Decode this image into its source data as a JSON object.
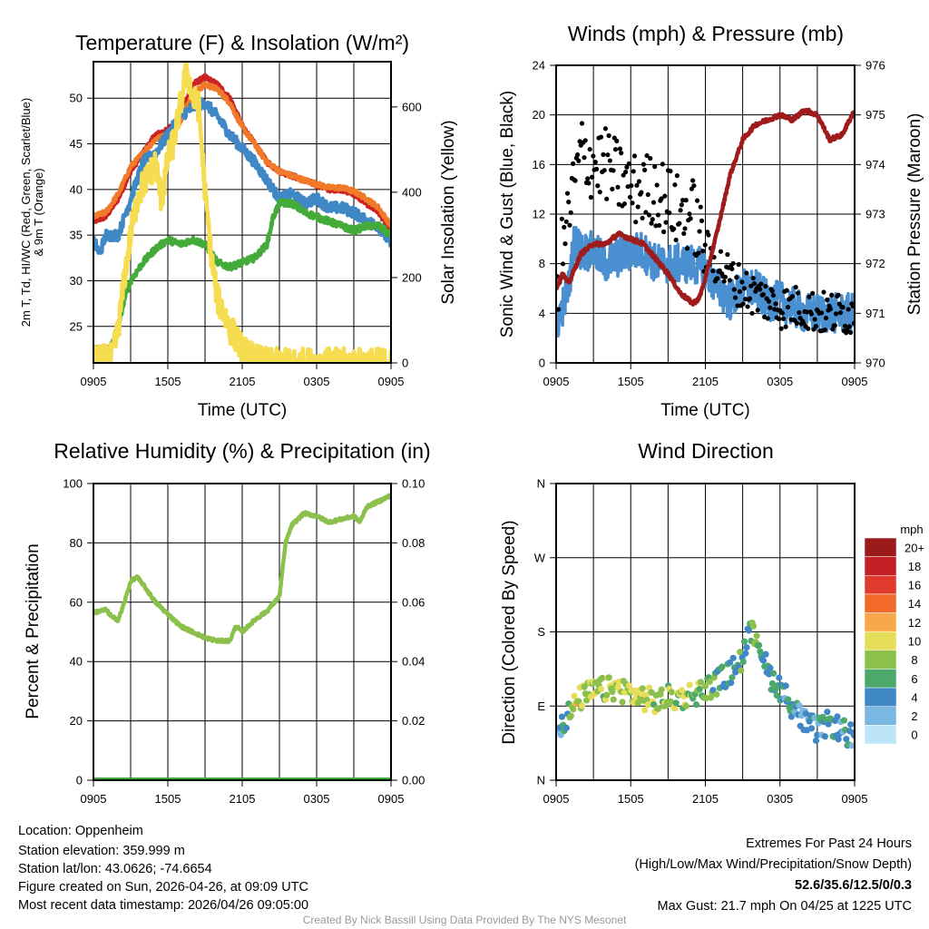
{
  "chart_data": [
    {
      "type": "line",
      "id": "temp",
      "title": "Temperature (F) & Insolation (W/m²)",
      "xlabel": "Time (UTC)",
      "ylabel": [
        "2m T, Td, HI/WC (Red, Green, Scarlet/Blue)",
        "& 9m T (Orange)"
      ],
      "ylabel_right": "Solar Insolation (Yellow)",
      "x_ticks": [
        "0905",
        "1505",
        "2105",
        "0305",
        "0905"
      ],
      "xlim_hours": [
        0,
        24
      ],
      "ylim": [
        21,
        54
      ],
      "y_ticks": [
        25,
        30,
        35,
        40,
        45,
        50
      ],
      "ylim_right": [
        0,
        706
      ],
      "y_ticks_right": [
        0,
        200,
        400,
        600
      ],
      "series": [
        {
          "name": "HI/WC",
          "axis": "left",
          "color": "#cc2222",
          "x": [
            0,
            1,
            2,
            3,
            4,
            5,
            6,
            7,
            8,
            9,
            10,
            11,
            12,
            13,
            14,
            15,
            16,
            17,
            18,
            19,
            20,
            21,
            22,
            23,
            24
          ],
          "values": [
            36.5,
            37,
            39,
            42,
            44,
            46,
            46.5,
            48,
            51.5,
            52.3,
            51.5,
            50,
            47,
            45,
            43,
            42,
            41.5,
            41,
            40.5,
            40,
            40,
            39.5,
            38.5,
            37.5,
            35.5
          ]
        },
        {
          "name": "9m T",
          "axis": "left",
          "color": "#f07a2a",
          "x": [
            0,
            1,
            2,
            3,
            4,
            5,
            6,
            7,
            8,
            9,
            10,
            11,
            12,
            13,
            14,
            15,
            16,
            17,
            18,
            19,
            20,
            21,
            22,
            23,
            24
          ],
          "values": [
            37,
            37.5,
            39.5,
            42.5,
            44,
            45.5,
            46,
            47.5,
            50.5,
            51.5,
            51,
            49.5,
            46.8,
            45,
            43,
            42,
            41.5,
            41,
            40.6,
            40.2,
            40.2,
            39.8,
            39,
            38,
            36
          ]
        },
        {
          "name": "2m T",
          "axis": "left",
          "color": "#3f88c5",
          "x": [
            0,
            0.5,
            1,
            2,
            3,
            4,
            5,
            6,
            7,
            8,
            9,
            10,
            11,
            12,
            13,
            14,
            15,
            16,
            17,
            18,
            19,
            20,
            21,
            22,
            23,
            24
          ],
          "values": [
            34.5,
            33,
            35,
            35,
            39,
            43,
            44,
            46,
            48,
            49,
            49.5,
            48,
            46,
            44.5,
            43,
            41,
            39,
            39.5,
            38.5,
            39,
            38,
            38,
            37.5,
            36.5,
            36,
            34
          ]
        },
        {
          "name": "Td",
          "axis": "left",
          "color": "#44aa3a",
          "x": [
            0,
            1,
            1.5,
            2,
            2.5,
            3,
            4,
            5,
            6,
            7,
            8,
            9,
            10,
            11,
            12,
            13,
            14,
            14.5,
            15,
            16,
            17,
            18,
            19,
            20,
            21,
            22,
            23,
            24
          ],
          "values": [
            22.5,
            22.5,
            23,
            25,
            28,
            30,
            32,
            33.5,
            34.5,
            34,
            34.5,
            34,
            32,
            31.5,
            32,
            32.5,
            34,
            37,
            38.5,
            38.5,
            37.5,
            37,
            36.5,
            36,
            35.5,
            36,
            36,
            35
          ]
        },
        {
          "name": "Solar Insolation",
          "axis": "right",
          "color": "#f5dc50",
          "x": [
            0,
            1.5,
            2,
            2.5,
            3,
            3.5,
            4,
            4.5,
            5,
            5.5,
            6,
            6.5,
            7,
            7.5,
            8,
            8.5,
            9,
            9.5,
            10,
            10.5,
            11,
            11.5,
            12,
            13,
            14,
            24
          ],
          "values": [
            5,
            10,
            80,
            200,
            300,
            380,
            420,
            440,
            470,
            380,
            480,
            520,
            600,
            690,
            620,
            600,
            400,
            250,
            150,
            120,
            80,
            60,
            30,
            10,
            0,
            0
          ]
        }
      ]
    },
    {
      "type": "line",
      "id": "wind",
      "title": "Winds (mph) & Pressure (mb)",
      "xlabel": "Time (UTC)",
      "ylabel": "Sonic Wind & Gust (Blue, Black)",
      "ylabel_right": "Station Pressure (Maroon)",
      "x_ticks": [
        "0905",
        "1505",
        "2105",
        "0305",
        "0905"
      ],
      "xlim_hours": [
        0,
        24
      ],
      "ylim": [
        0,
        24
      ],
      "y_ticks": [
        0,
        4,
        8,
        12,
        16,
        20,
        24
      ],
      "ylim_right": [
        970,
        976
      ],
      "y_ticks_right": [
        970,
        971,
        972,
        973,
        974,
        975,
        976
      ],
      "series": [
        {
          "name": "Sonic Wind",
          "axis": "left",
          "color": "#4a90d0",
          "x": [
            0,
            1,
            1.5,
            2,
            3,
            4,
            5,
            6,
            7,
            8,
            9,
            10,
            11,
            12,
            13,
            14,
            15,
            16,
            17,
            18,
            19,
            20,
            21,
            22,
            23,
            24
          ],
          "values": [
            3,
            6,
            10,
            9,
            9,
            8,
            8.5,
            9,
            9,
            8,
            8,
            8,
            8,
            7.5,
            6,
            5,
            6,
            6,
            5,
            5,
            4.5,
            4,
            4,
            4,
            4,
            4
          ]
        },
        {
          "name": "Gust",
          "axis": "left",
          "color": "#000000",
          "style": "dots",
          "x": [
            0,
            1,
            2,
            3,
            4,
            5,
            6,
            7,
            8,
            9,
            10,
            11,
            12,
            13,
            14,
            15,
            16,
            17,
            18,
            19,
            20,
            21,
            22,
            23,
            24
          ],
          "values": [
            6,
            12,
            17,
            16,
            16,
            15,
            14,
            14,
            14,
            13,
            12,
            12,
            9,
            8,
            7,
            6,
            5.5,
            5,
            4.5,
            4.5,
            4.5,
            4,
            4,
            4,
            4
          ]
        },
        {
          "name": "Station Pressure",
          "axis": "right",
          "color": "#a01c1c",
          "x": [
            0,
            0.5,
            1,
            2,
            3,
            4,
            5,
            6,
            7,
            8,
            9,
            10,
            11,
            11.5,
            12,
            13,
            14,
            15,
            16,
            17,
            18,
            19,
            20,
            21,
            22,
            23,
            24
          ],
          "values": [
            971.5,
            971.8,
            971.6,
            972.2,
            972.4,
            972.4,
            972.6,
            972.5,
            972.4,
            972.1,
            971.8,
            971.4,
            971.2,
            971.3,
            971.7,
            972.7,
            973.8,
            974.5,
            974.8,
            974.9,
            975,
            974.9,
            975.1,
            975,
            974.5,
            974.6,
            975.1
          ]
        }
      ]
    },
    {
      "type": "line",
      "id": "rh",
      "title": "Relative Humidity (%) & Precipitation (in)",
      "ylabel": "Percent & Precipitation",
      "x_ticks": [
        "0905",
        "1505",
        "2105",
        "0305",
        "0905"
      ],
      "xlim_hours": [
        0,
        24
      ],
      "ylim": [
        0,
        100
      ],
      "y_ticks": [
        0,
        20,
        40,
        60,
        80,
        100
      ],
      "ylim_right": [
        0,
        0.1
      ],
      "y_ticks_right": [
        "0.00",
        "0.02",
        "0.04",
        "0.06",
        "0.08",
        "0.10"
      ],
      "series": [
        {
          "name": "Relative Humidity",
          "axis": "left",
          "color": "#8cc04c",
          "x": [
            0,
            1,
            1.5,
            2,
            2.5,
            3,
            3.5,
            4,
            5,
            6,
            7,
            8,
            9,
            10,
            11,
            11.5,
            12,
            13,
            14,
            15,
            15.5,
            16,
            17,
            18,
            19,
            20,
            21,
            21.5,
            22,
            23,
            24
          ],
          "values": [
            56.5,
            57.5,
            55,
            54,
            60,
            67,
            68.5,
            66,
            60,
            56,
            52,
            50,
            48,
            47,
            47,
            52,
            50,
            54,
            57,
            62,
            80,
            86,
            90,
            89,
            87,
            88,
            89,
            87,
            92,
            94,
            96
          ]
        },
        {
          "name": "Precipitation",
          "axis": "right",
          "color": "#3aa83a",
          "x": [
            0,
            24
          ],
          "values": [
            0,
            0
          ]
        }
      ]
    },
    {
      "type": "scatter",
      "id": "dir",
      "title": "Wind Direction",
      "ylabel": "Direction (Colored By Speed)",
      "x_ticks": [
        "0905",
        "1505",
        "2105",
        "0305",
        "0905"
      ],
      "xlim_hours": [
        0,
        24
      ],
      "ylim": [
        0,
        360
      ],
      "y_ticks": [
        {
          "v": 0,
          "label": "N"
        },
        {
          "v": 90,
          "label": "E"
        },
        {
          "v": 180,
          "label": "S"
        },
        {
          "v": 270,
          "label": "W"
        },
        {
          "v": 360,
          "label": "N"
        }
      ],
      "series": [
        {
          "name": "Direction",
          "x": [
            0,
            1,
            2,
            3,
            4,
            5,
            6,
            7,
            8,
            9,
            10,
            11,
            12,
            13,
            14,
            15,
            15.5,
            16,
            16.5,
            17,
            18,
            19,
            20,
            21,
            22,
            23,
            24
          ],
          "values": [
            60,
            80,
            100,
            108,
            110,
            112,
            105,
            100,
            95,
            100,
            100,
            105,
            110,
            120,
            130,
            150,
            175,
            180,
            160,
            130,
            112,
            90,
            70,
            60,
            70,
            60,
            50
          ]
        }
      ],
      "colorbar": {
        "label": "mph",
        "entries": [
          {
            "label": "20+",
            "color": "#9b1b1b"
          },
          {
            "label": "18",
            "color": "#c22026"
          },
          {
            "label": "16",
            "color": "#e03a2c"
          },
          {
            "label": "14",
            "color": "#f26a2a"
          },
          {
            "label": "12",
            "color": "#f8a84a"
          },
          {
            "label": "10",
            "color": "#e6de5a"
          },
          {
            "label": "8",
            "color": "#8cc04c"
          },
          {
            "label": "6",
            "color": "#4ca96a"
          },
          {
            "label": "4",
            "color": "#3f88c5"
          },
          {
            "label": "2",
            "color": "#7ab8e2"
          },
          {
            "label": "0",
            "color": "#bde5f8"
          }
        ]
      }
    }
  ],
  "info": {
    "location": "Location: Oppenheim",
    "elevation": "Station elevation: 359.999 m",
    "latlon": "Station lat/lon: 43.0626; -74.6654",
    "created": "Figure created on Sun, 2026-04-26, at 09:09 UTC",
    "recent": "Most recent data timestamp: 2026/04/26 09:05:00"
  },
  "extremes": {
    "title": "Extremes For Past 24 Hours",
    "subtitle": "(High/Low/Max Wind/Precipitation/Snow Depth)",
    "values": "52.6/35.6/12.5/0/0.3",
    "values_color": "#cc2222",
    "max_gust": "Max Gust: 21.7 mph On 04/25 at 1225 UTC"
  },
  "credit": "Created By Nick Bassill Using Data Provided By The NYS Mesonet"
}
